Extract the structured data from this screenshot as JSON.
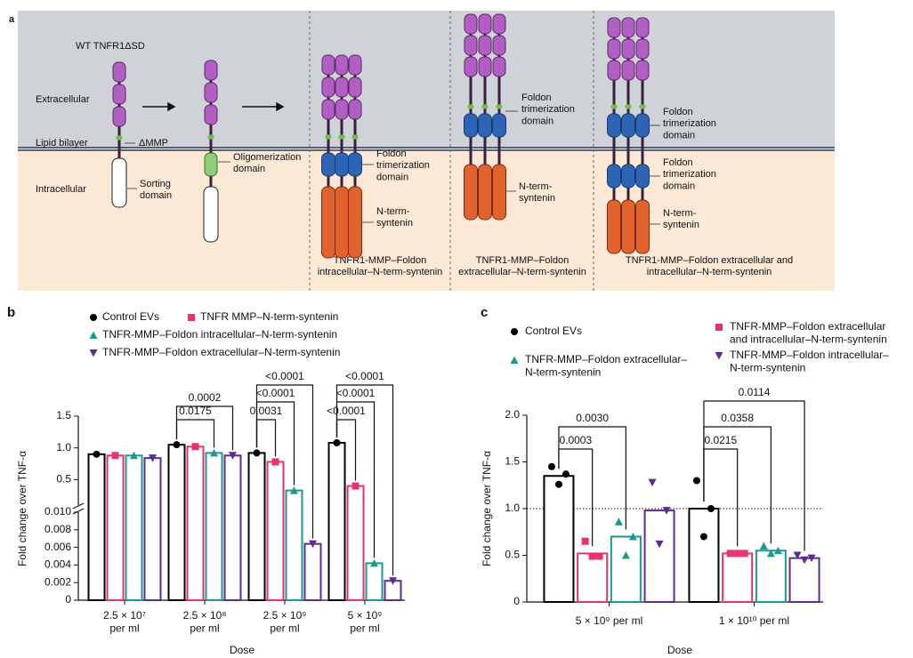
{
  "diagram": {
    "labels": [
      "a",
      "WT TNFR1ΔSD",
      "Extracellular",
      "Lipid bilayer",
      "ΔMMP",
      "Intracellular",
      "Sorting\ndomain",
      "Oligomerization\ndomain",
      "Foldon\ntrimerization\ndomain",
      "N-term-\nsyntenin",
      "TNFR1-MMP–Foldon\nintracellular–N-term-syntenin",
      "Foldon\ntrimerization\ndomain",
      "N-term-\nsyntenin",
      "TNFR1-MMP–Foldon\nextracellular–N-term-syntenin",
      "Foldon\ntrimerization\ndomain",
      "Foldon\ntrimerization\ndomain",
      "N-term-\nsyntenin",
      "TNFR1-MMP–Foldon extracellular and\nintracellular–N-term-syntenin"
    ]
  },
  "chart_data": [
    {
      "type": "bar",
      "panel": "b",
      "xlabel": "Dose",
      "ylabel": "Fold change over TNF-α",
      "categories": [
        "2.5 × 10⁷\nper ml",
        "2.5 × 10⁸\nper ml",
        "2.5 × 10⁹\nper ml",
        "5 × 10⁹\nper ml"
      ],
      "y_segments": [
        {
          "ylim": [
            0,
            0.01
          ],
          "yticks": [
            0,
            0.002,
            0.004,
            0.006,
            0.008,
            {
              "value": 0.01,
              "label": "0.010"
            }
          ]
        },
        {
          "ylim": [
            0.1,
            1.5
          ],
          "yticks": [
            0.5,
            {
              "value": 1,
              "label": "1.0"
            },
            1.5
          ]
        }
      ],
      "series": [
        {
          "name": "Control EVs",
          "color": "#000000",
          "marker": "circle",
          "values": [
            0.9,
            1.05,
            0.92,
            1.08
          ]
        },
        {
          "name": "TNFR MMP–N-term-syntenin",
          "color": "#e8336b",
          "marker": "square",
          "values": [
            0.88,
            1.02,
            0.78,
            0.4
          ]
        },
        {
          "name": "TNFR-MMP–Foldon intracellular–N-term-syntenin",
          "color": "#1a9a8f",
          "marker": "triangle-up",
          "values": [
            0.88,
            0.92,
            0.33,
            0.0042
          ]
        },
        {
          "name": "TNFR-MMP–Foldon extracellular–N-term-syntenin",
          "color": "#5b2d90",
          "marker": "triangle-down",
          "values": [
            0.84,
            0.88,
            0.0064,
            0.0022
          ]
        }
      ],
      "annotations": [
        "0.0002",
        "0.0175",
        "<0.0001",
        "<0.0001",
        "0.0031",
        "<0.0001",
        "<0.0001",
        "<0.0001"
      ]
    },
    {
      "type": "bar",
      "panel": "c",
      "xlabel": "Dose",
      "ylabel": "Fold change over TNF-α",
      "categories": [
        "5 × 10⁹ per ml",
        "1 × 10¹⁰ per ml"
      ],
      "ylim": [
        0,
        2
      ],
      "yticks": [
        0,
        0.5,
        {
          "value": 1,
          "label": "1.0"
        },
        1.5,
        {
          "value": 2,
          "label": "2.0"
        }
      ],
      "reference_line": 1,
      "series": [
        {
          "name": "Control EVs",
          "color": "#000000",
          "marker": "circle",
          "values": [
            1.35,
            1.0
          ],
          "points": [
            [
              1.45,
              1.37,
              1.26
            ],
            [
              1.3,
              1.0,
              0.7
            ]
          ]
        },
        {
          "name": "TNFR-MMP–Foldon extracellular\nand intracellular–N-term-syntenin",
          "color": "#e8336b",
          "marker": "square",
          "values": [
            0.52,
            0.52
          ],
          "points": [
            [
              0.65,
              0.49,
              0.49
            ],
            [
              0.52,
              0.52,
              0.52
            ]
          ]
        },
        {
          "name": "TNFR-MMP–Foldon extracellular–\nN-term-syntenin",
          "color": "#1a9a8f",
          "marker": "triangle-up",
          "values": [
            0.7,
            0.55
          ],
          "points": [
            [
              0.86,
              0.7,
              0.5
            ],
            [
              0.6,
              0.55,
              0.52
            ]
          ]
        },
        {
          "name": "TNFR-MMP–Foldon intracellular–\nN-term-syntenin",
          "color": "#5b2d90",
          "marker": "triangle-down",
          "values": [
            0.98,
            0.47
          ],
          "points": [
            [
              1.28,
              0.98,
              0.62
            ],
            [
              0.5,
              0.47,
              0.45
            ]
          ]
        }
      ],
      "annotations": [
        "0.0003",
        "0.0030",
        "0.0215",
        "0.0358",
        "0.0114"
      ]
    }
  ]
}
